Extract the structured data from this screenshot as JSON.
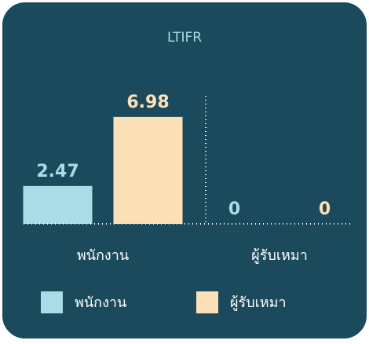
{
  "chart_data": {
    "type": "bar",
    "title": "LTIFR",
    "categories": [
      "พนักงาน",
      "ผู้รับเหมา"
    ],
    "series": [
      {
        "name": "พนักงาน",
        "color": "#a9dce7",
        "values": [
          2.47,
          0
        ]
      },
      {
        "name": "ผู้รับเหมา",
        "color": "#fde1b6",
        "values": [
          6.98,
          0
        ]
      }
    ],
    "ylim": [
      0,
      8
    ],
    "legend": "bottom"
  }
}
